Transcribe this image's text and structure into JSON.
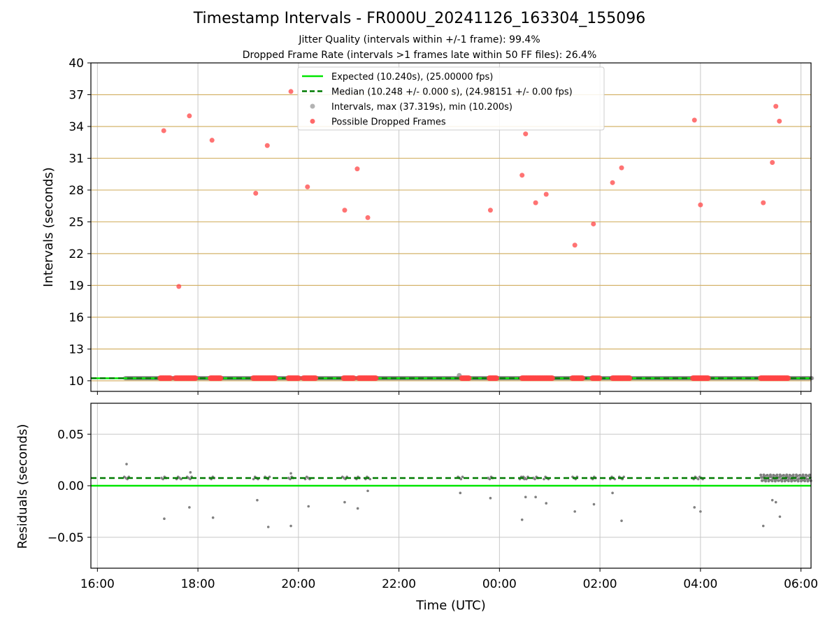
{
  "title": "Timestamp Intervals - FR000U_20241126_163304_155096",
  "subtitle_1": "Jitter Quality (intervals within +/-1 frame): 99.4%",
  "subtitle_2": "Dropped Frame Rate (intervals >1 frames late within 50 FF files): 26.4%",
  "colors": {
    "expected": "#00e600",
    "median": "#007a00",
    "intervals": "#808080",
    "dropped": "#ff4444",
    "hgrid_top": "#d4b36a",
    "grid": "#c8c8c8"
  },
  "chart_data": [
    {
      "type": "scatter",
      "panel": "top",
      "ylabel": "Intervals (seconds)",
      "ylim": [
        9,
        40
      ],
      "yticks": [
        "10",
        "13",
        "16",
        "19",
        "22",
        "25",
        "28",
        "31",
        "34",
        "37",
        "40"
      ],
      "legend": {
        "location": "upper-center",
        "entries": [
          "Expected (10.240s), (25.00000 fps)",
          "Median (10.248 +/- 0.000 s), (24.98151 +/- 0.00 fps)",
          "Intervals, max (37.319s), min (10.200s)",
          "Possible Dropped Frames"
        ]
      },
      "expected_y": 10.24,
      "median_y": 10.248,
      "interval_span_hours": [
        16.55,
        30.22
      ],
      "interval_extra_points": [
        {
          "x": 23.2,
          "y": 10.5
        }
      ],
      "series": [
        {
          "name": "Possible Dropped Frames",
          "points": [
            {
              "x": 17.32,
              "y": 33.6
            },
            {
              "x": 17.62,
              "y": 18.9
            },
            {
              "x": 17.83,
              "y": 35.0
            },
            {
              "x": 18.28,
              "y": 32.7
            },
            {
              "x": 19.15,
              "y": 27.7
            },
            {
              "x": 19.38,
              "y": 32.2
            },
            {
              "x": 19.85,
              "y": 37.3
            },
            {
              "x": 20.18,
              "y": 28.3
            },
            {
              "x": 20.92,
              "y": 26.1
            },
            {
              "x": 21.17,
              "y": 30.0
            },
            {
              "x": 21.38,
              "y": 25.4
            },
            {
              "x": 23.82,
              "y": 26.1
            },
            {
              "x": 24.45,
              "y": 29.4
            },
            {
              "x": 24.52,
              "y": 33.3
            },
            {
              "x": 24.72,
              "y": 26.8
            },
            {
              "x": 24.93,
              "y": 27.6
            },
            {
              "x": 25.5,
              "y": 22.8
            },
            {
              "x": 25.87,
              "y": 24.8
            },
            {
              "x": 26.25,
              "y": 28.7
            },
            {
              "x": 26.43,
              "y": 30.1
            },
            {
              "x": 27.88,
              "y": 34.6
            },
            {
              "x": 28.0,
              "y": 26.6
            },
            {
              "x": 29.25,
              "y": 26.8
            },
            {
              "x": 29.43,
              "y": 30.6
            },
            {
              "x": 29.5,
              "y": 35.9
            },
            {
              "x": 29.57,
              "y": 34.5
            }
          ],
          "baseline_clusters": [
            [
              17.25,
              17.45
            ],
            [
              17.55,
              17.95
            ],
            [
              18.25,
              18.45
            ],
            [
              19.1,
              19.55
            ],
            [
              19.8,
              20.0
            ],
            [
              20.1,
              20.35
            ],
            [
              20.9,
              21.1
            ],
            [
              21.2,
              21.55
            ],
            [
              23.25,
              23.4
            ],
            [
              23.8,
              23.95
            ],
            [
              24.45,
              25.05
            ],
            [
              25.45,
              25.65
            ],
            [
              25.85,
              26.0
            ],
            [
              26.25,
              26.6
            ],
            [
              27.85,
              28.15
            ],
            [
              29.2,
              29.75
            ]
          ]
        }
      ]
    },
    {
      "type": "scatter",
      "panel": "bottom",
      "xlabel": "Time (UTC)",
      "ylabel": "Residuals (seconds)",
      "ylim": [
        -0.08,
        0.08
      ],
      "yticks": [
        "−0.05",
        "0.00",
        "0.05"
      ],
      "ytick_values": [
        -0.05,
        0.0,
        0.05
      ],
      "xlim": [
        15.87,
        30.2
      ],
      "xticks": [
        "16:00",
        "18:00",
        "20:00",
        "22:00",
        "00:00",
        "02:00",
        "04:00",
        "06:00"
      ],
      "xtick_hours": [
        16,
        18,
        20,
        22,
        24,
        26,
        28,
        30
      ],
      "expected_residual": 0.0,
      "median_residual": 0.0075,
      "outliers": [
        {
          "x": 16.58,
          "y": 0.021
        },
        {
          "x": 17.33,
          "y": -0.032
        },
        {
          "x": 17.83,
          "y": -0.021
        },
        {
          "x": 17.85,
          "y": 0.013
        },
        {
          "x": 18.3,
          "y": -0.031
        },
        {
          "x": 19.18,
          "y": -0.014
        },
        {
          "x": 19.4,
          "y": -0.04
        },
        {
          "x": 19.85,
          "y": -0.039
        },
        {
          "x": 19.85,
          "y": 0.012
        },
        {
          "x": 20.2,
          "y": -0.02
        },
        {
          "x": 20.92,
          "y": -0.016
        },
        {
          "x": 21.18,
          "y": -0.022
        },
        {
          "x": 21.38,
          "y": -0.005
        },
        {
          "x": 23.22,
          "y": -0.007
        },
        {
          "x": 23.82,
          "y": -0.012
        },
        {
          "x": 24.45,
          "y": -0.033
        },
        {
          "x": 24.52,
          "y": -0.011
        },
        {
          "x": 24.72,
          "y": -0.011
        },
        {
          "x": 24.93,
          "y": -0.017
        },
        {
          "x": 25.5,
          "y": -0.025
        },
        {
          "x": 25.88,
          "y": -0.018
        },
        {
          "x": 26.25,
          "y": -0.007
        },
        {
          "x": 26.43,
          "y": -0.034
        },
        {
          "x": 27.88,
          "y": -0.021
        },
        {
          "x": 28.0,
          "y": -0.025
        },
        {
          "x": 29.25,
          "y": -0.039
        },
        {
          "x": 29.43,
          "y": -0.014
        },
        {
          "x": 29.5,
          "y": -0.016
        },
        {
          "x": 29.58,
          "y": -0.03
        }
      ]
    }
  ]
}
